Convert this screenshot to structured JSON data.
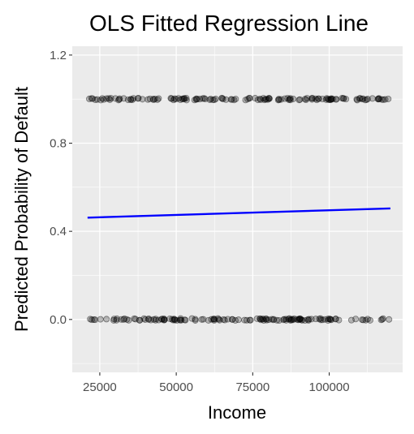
{
  "chart_data": {
    "type": "scatter",
    "title": "OLS Fitted Regression Line",
    "xlabel": "Income",
    "ylabel": "Predicted Probability of Default",
    "xlim": [
      16000,
      124000
    ],
    "ylim": [
      -0.24,
      1.24
    ],
    "x_ticks": [
      25000,
      50000,
      75000,
      100000
    ],
    "x_tick_labels": [
      "25000",
      "50000",
      "75000",
      "100000"
    ],
    "y_ticks": [
      0.0,
      0.4,
      0.8,
      1.2
    ],
    "y_tick_labels": [
      "0.0",
      "0.4",
      "0.8",
      "1.2"
    ],
    "grid": true,
    "background": "#ebebeb",
    "series": [
      {
        "kind": "points",
        "color": "#000000",
        "opacity": 0.45,
        "x_range": [
          21000,
          120000
        ],
        "y_values": [
          0,
          1
        ],
        "points_per_level": 140
      },
      {
        "kind": "line",
        "color": "#0000ff",
        "x": [
          21000,
          120000
        ],
        "y": [
          0.462,
          0.504
        ]
      }
    ]
  }
}
